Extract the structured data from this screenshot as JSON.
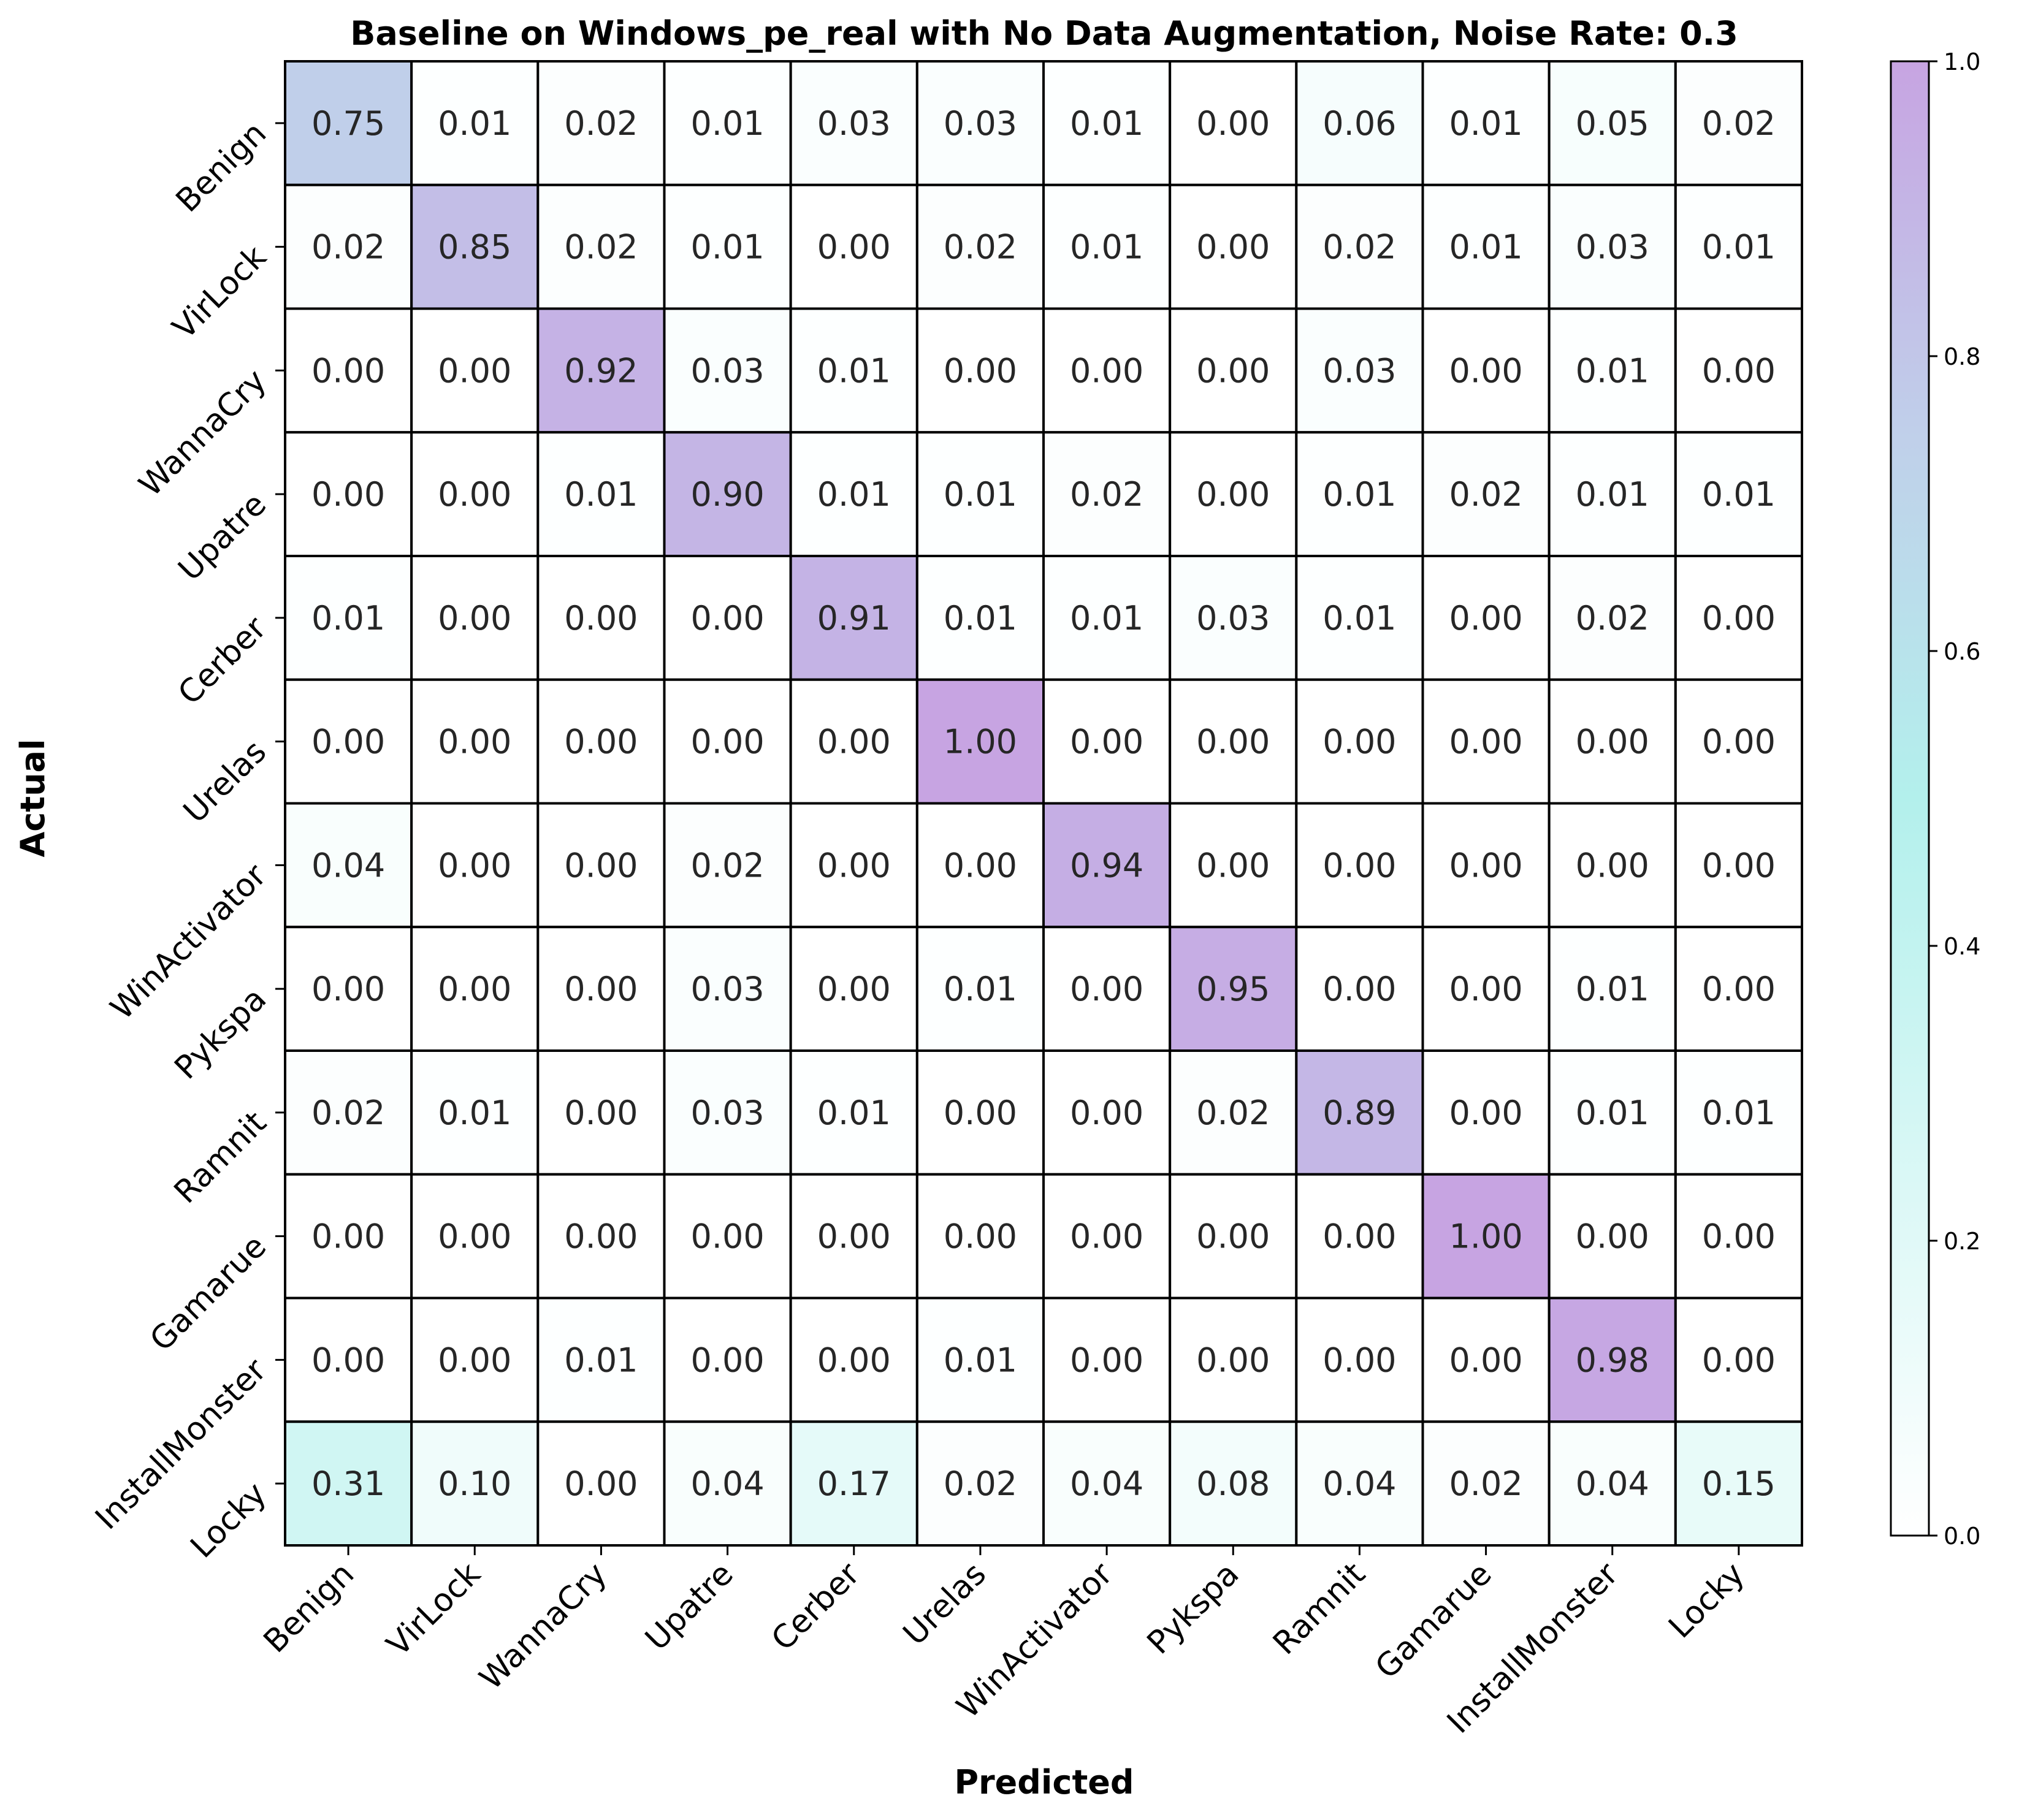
{
  "chart_data": {
    "type": "heatmap",
    "title": "Baseline on Windows_pe_real with No Data Augmentation, Noise Rate: 0.3",
    "xlabel": "Predicted",
    "ylabel": "Actual",
    "x_categories": [
      "Benign",
      "VirLock",
      "WannaCry",
      "Upatre",
      "Cerber",
      "Urelas",
      "WinActivator",
      "Pykspa",
      "Ramnit",
      "Gamarue",
      "InstallMonster",
      "Locky"
    ],
    "y_categories": [
      "Benign",
      "VirLock",
      "WannaCry",
      "Upatre",
      "Cerber",
      "Urelas",
      "WinActivator",
      "Pykspa",
      "Ramnit",
      "Gamarue",
      "InstallMonster",
      "Locky"
    ],
    "values": [
      [
        0.75,
        0.01,
        0.02,
        0.01,
        0.03,
        0.03,
        0.01,
        0.0,
        0.06,
        0.01,
        0.05,
        0.02
      ],
      [
        0.02,
        0.85,
        0.02,
        0.01,
        0.0,
        0.02,
        0.01,
        0.0,
        0.02,
        0.01,
        0.03,
        0.01
      ],
      [
        0.0,
        0.0,
        0.92,
        0.03,
        0.01,
        0.0,
        0.0,
        0.0,
        0.03,
        0.0,
        0.01,
        0.0
      ],
      [
        0.0,
        0.0,
        0.01,
        0.9,
        0.01,
        0.01,
        0.02,
        0.0,
        0.01,
        0.02,
        0.01,
        0.01
      ],
      [
        0.01,
        0.0,
        0.0,
        0.0,
        0.91,
        0.01,
        0.01,
        0.03,
        0.01,
        0.0,
        0.02,
        0.0
      ],
      [
        0.0,
        0.0,
        0.0,
        0.0,
        0.0,
        1.0,
        0.0,
        0.0,
        0.0,
        0.0,
        0.0,
        0.0
      ],
      [
        0.04,
        0.0,
        0.0,
        0.02,
        0.0,
        0.0,
        0.94,
        0.0,
        0.0,
        0.0,
        0.0,
        0.0
      ],
      [
        0.0,
        0.0,
        0.0,
        0.03,
        0.0,
        0.01,
        0.0,
        0.95,
        0.0,
        0.0,
        0.01,
        0.0
      ],
      [
        0.02,
        0.01,
        0.0,
        0.03,
        0.01,
        0.0,
        0.0,
        0.02,
        0.89,
        0.0,
        0.01,
        0.01
      ],
      [
        0.0,
        0.0,
        0.0,
        0.0,
        0.0,
        0.0,
        0.0,
        0.0,
        0.0,
        1.0,
        0.0,
        0.0
      ],
      [
        0.0,
        0.0,
        0.01,
        0.0,
        0.0,
        0.01,
        0.0,
        0.0,
        0.0,
        0.0,
        0.98,
        0.0
      ],
      [
        0.31,
        0.1,
        0.0,
        0.04,
        0.17,
        0.02,
        0.04,
        0.08,
        0.04,
        0.02,
        0.04,
        0.15
      ]
    ],
    "value_format": "0.00",
    "colorbar": {
      "range": [
        0.0,
        1.0
      ],
      "ticks": [
        "0.0",
        "0.2",
        "0.4",
        "0.6",
        "0.8",
        "1.0"
      ],
      "stops": [
        {
          "v": 0.0,
          "color": "#ffffff"
        },
        {
          "v": 0.5,
          "color": "#b3f0ec"
        },
        {
          "v": 0.75,
          "color": "#c0cfea"
        },
        {
          "v": 1.0,
          "color": "#c7a4e2"
        }
      ]
    },
    "grid": true
  }
}
